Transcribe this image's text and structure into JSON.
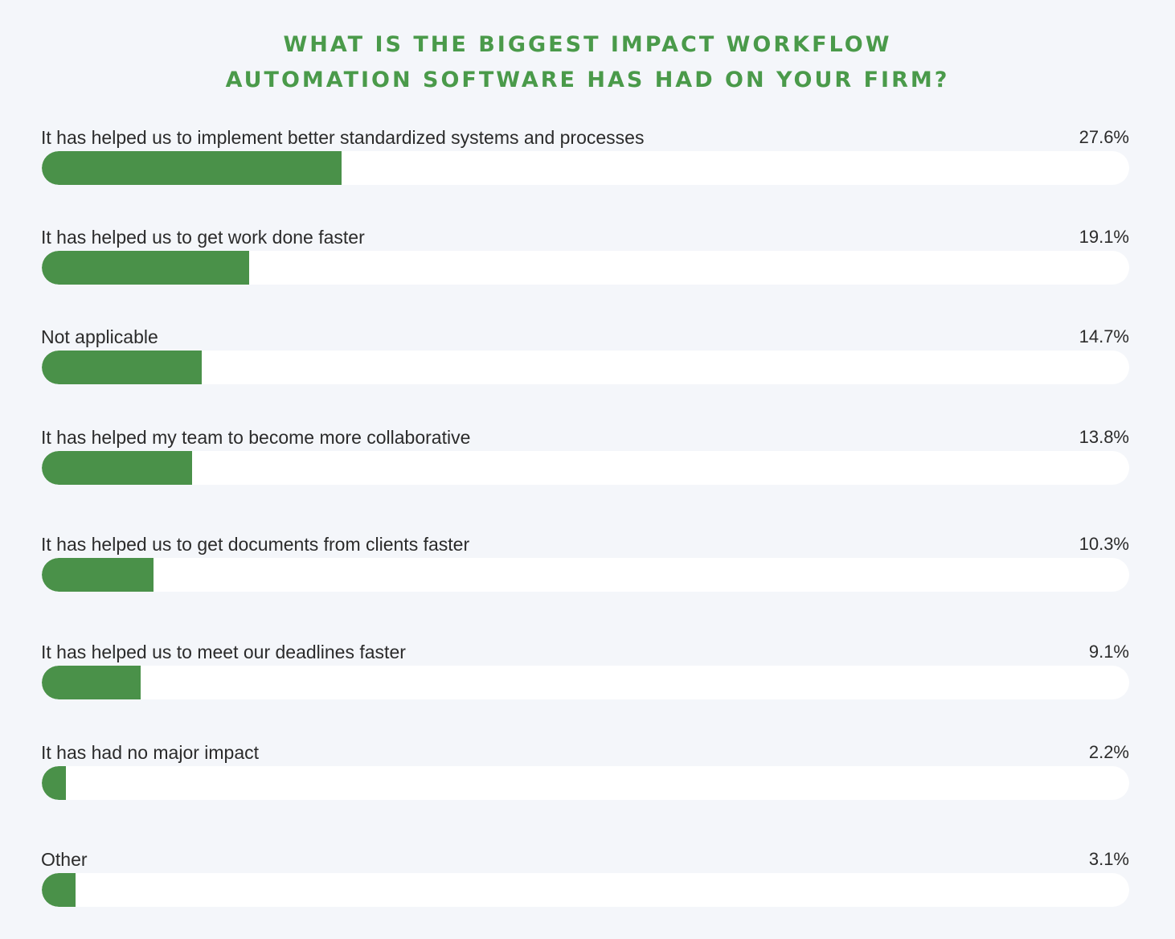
{
  "chart_data": {
    "type": "bar",
    "orientation": "horizontal",
    "title_lines": [
      "WHAT IS THE BIGGEST IMPACT WORKFLOW",
      "AUTOMATION SOFTWARE HAS HAD ON YOUR FIRM?"
    ],
    "categories": [
      "It has helped us to implement better standardized systems and processes",
      "It has helped us to get work done faster",
      "Not applicable",
      "It has helped my team to become more collaborative",
      "It has helped us to get documents from clients faster",
      "It has helped us to meet our deadlines faster",
      "It has had no major impact",
      "Other"
    ],
    "values": [
      27.6,
      19.1,
      14.7,
      13.8,
      10.3,
      9.1,
      2.2,
      3.1
    ],
    "value_labels": [
      "27.6%",
      "19.1%",
      "14.7%",
      "13.8%",
      "10.3%",
      "9.1%",
      "2.2%",
      "3.1%"
    ],
    "xlim": [
      0,
      100
    ],
    "unit": "%",
    "grid": false,
    "colors": {
      "bar": "#4a9149",
      "track": "#ffffff",
      "title": "#4a9a4a",
      "background": "#f4f6fa"
    }
  }
}
